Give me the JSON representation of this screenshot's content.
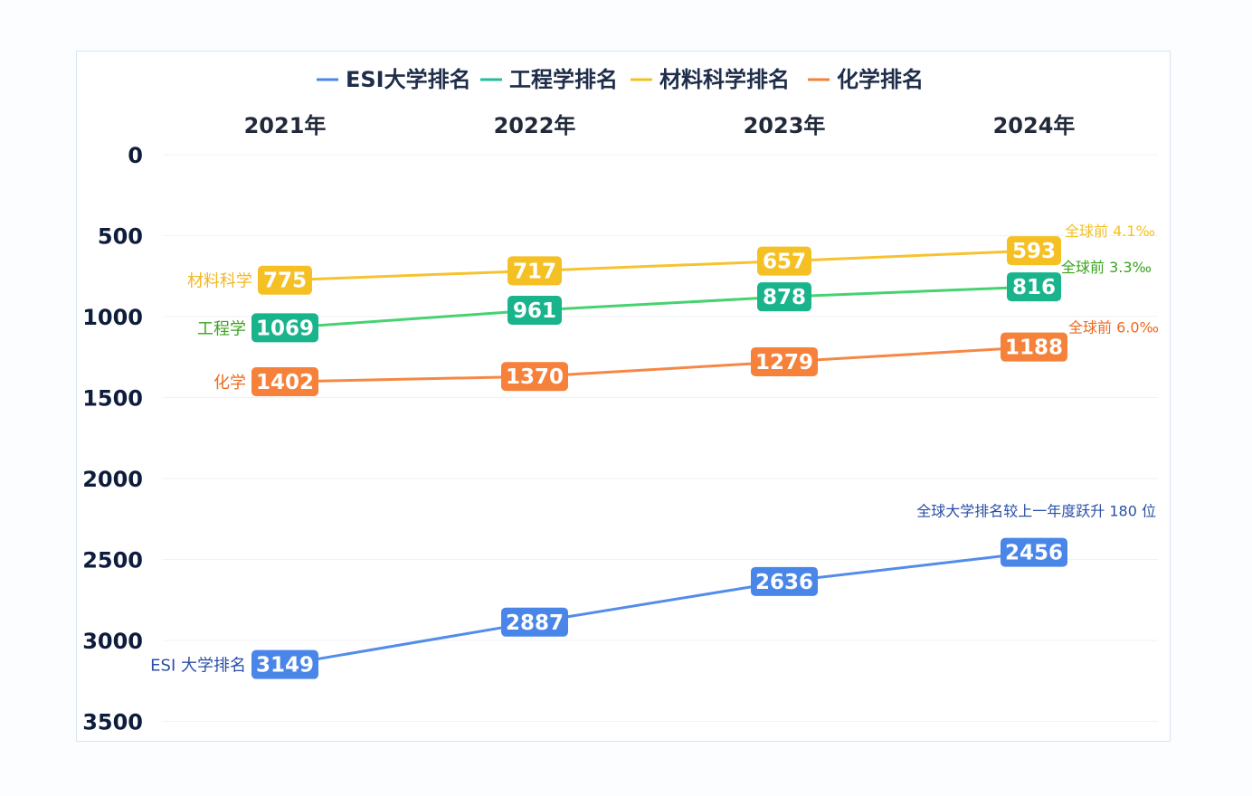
{
  "chart_data": {
    "type": "line",
    "title": "",
    "xlabel": "",
    "ylabel": "",
    "x": [
      "2021年",
      "2022年",
      "2023年",
      "2024年"
    ],
    "y_axis": {
      "inverted": true,
      "ylim": [
        0,
        3500
      ],
      "ticks": [
        0,
        500,
        1000,
        1500,
        2000,
        2500,
        3000,
        3500
      ]
    },
    "grid": true,
    "legend_position": "top",
    "series": [
      {
        "name": "ESI大学排名",
        "label": "ESI 大学排名",
        "color": "#4a86e8",
        "values": [
          3149,
          2887,
          2636,
          2456
        ],
        "note": "全球大学排名较上一年度跃升 180 位"
      },
      {
        "name": "工程学排名",
        "label": "工程学",
        "color": "#1fbf98",
        "values": [
          1069,
          961,
          878,
          816
        ],
        "note": "全球前 3.3‰"
      },
      {
        "name": "材料科学排名",
        "label": "材料科学",
        "color": "#f5c024",
        "values": [
          775,
          717,
          657,
          593
        ],
        "note": "全球前 4.1‰"
      },
      {
        "name": "化学排名",
        "label": "化学",
        "color": "#f5813a",
        "values": [
          1402,
          1370,
          1279,
          1188
        ],
        "note": "全球前 6.0‰"
      }
    ]
  },
  "colors": {
    "esi_label": "#2a4fa8",
    "engineering_label": "#3aa31e",
    "engineering_note": "#3aa31e",
    "materials_label": "#f2b722",
    "materials_note": "#f5c024",
    "chemistry_label": "#ee6a1f",
    "chemistry_note": "#ee6a1f",
    "esi_note": "#2a4fa8",
    "engineering_box": "#19b48c",
    "engineering_line": "#3dd06a"
  }
}
